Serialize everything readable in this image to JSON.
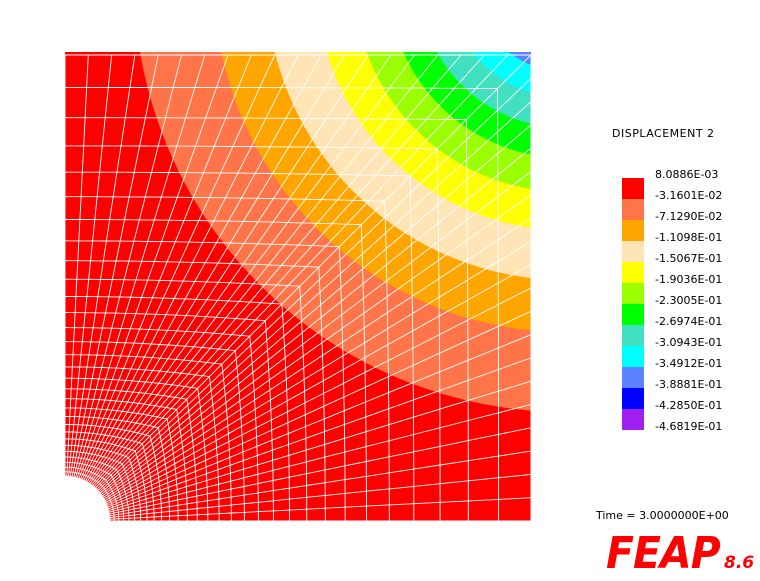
{
  "legend": {
    "title": "DISPLACEMENT 2",
    "entries": [
      {
        "value": "8.0886E-03",
        "color": "#ff0000"
      },
      {
        "value": "-3.1601E-02",
        "color": "#ff7448"
      },
      {
        "value": "-7.1290E-02",
        "color": "#ffa500"
      },
      {
        "value": "-1.1098E-01",
        "color": "#ffe4b5"
      },
      {
        "value": "-1.5067E-01",
        "color": "#ffff00"
      },
      {
        "value": "-1.9036E-01",
        "color": "#9aff00"
      },
      {
        "value": "-2.3005E-01",
        "color": "#00ff00"
      },
      {
        "value": "-2.6974E-01",
        "color": "#40e0c0"
      },
      {
        "value": "-3.0943E-01",
        "color": "#00ffff"
      },
      {
        "value": "-3.4912E-01",
        "color": "#5a82ff"
      },
      {
        "value": "-3.8881E-01",
        "color": "#0000ff"
      },
      {
        "value": "-4.2850E-01",
        "color": "#a020f0"
      },
      {
        "value": "-4.6819E-01",
        "color": ""
      }
    ]
  },
  "time": "Time = 3.0000000E+00",
  "logo": {
    "name": "FEAP",
    "version": "8.6"
  },
  "colors": {
    "mesh": "#ffffff",
    "logo": "#ff0000"
  }
}
